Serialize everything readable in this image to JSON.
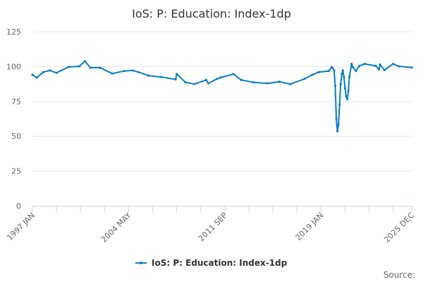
{
  "chart_data": {
    "type": "line",
    "title": "IoS: P: Education: Index-1dp",
    "xlabel": "",
    "ylabel": "",
    "x_range": [
      "1997-01",
      "2025-12"
    ],
    "x_tick_labels": [
      "1997 JAN",
      "2004 MAY",
      "2011 SEP",
      "2019 JAN",
      "2025 DEC"
    ],
    "ylim": [
      0,
      125
    ],
    "y_ticks": [
      0,
      25,
      50,
      75,
      100,
      125
    ],
    "grid": "horizontal",
    "legend_position": "bottom",
    "markers": true,
    "color": "#0a7dc2",
    "series": [
      {
        "name": "IoS: P: Education: Index-1dp",
        "points": [
          [
            "1997-01",
            94.1
          ],
          [
            "1997-05",
            92.1
          ],
          [
            "1997-11",
            96.0
          ],
          [
            "1998-05",
            97.2
          ],
          [
            "1998-11",
            95.5
          ],
          [
            "1999-10",
            99.7
          ],
          [
            "2000-08",
            100.2
          ],
          [
            "2001-01",
            103.9
          ],
          [
            "2001-06",
            99.2
          ],
          [
            "2002-03",
            99.2
          ],
          [
            "2003-02",
            95.0
          ],
          [
            "2004-01",
            96.8
          ],
          [
            "2004-09",
            97.2
          ],
          [
            "2005-02",
            96.0
          ],
          [
            "2005-11",
            93.5
          ],
          [
            "2006-11",
            92.5
          ],
          [
            "2007-12",
            90.8
          ],
          [
            "2008-01",
            94.6
          ],
          [
            "2008-09",
            88.7
          ],
          [
            "2009-05",
            87.4
          ],
          [
            "2010-04",
            90.4
          ],
          [
            "2010-06",
            87.9
          ],
          [
            "2011-02",
            91.2
          ],
          [
            "2011-05",
            92.1
          ],
          [
            "2012-05",
            94.6
          ],
          [
            "2012-12",
            90.4
          ],
          [
            "2013-11",
            88.7
          ],
          [
            "2014-12",
            87.9
          ],
          [
            "2015-11",
            89.1
          ],
          [
            "2016-09",
            87.4
          ],
          [
            "2017-10",
            91.2
          ],
          [
            "2018-05",
            94.1
          ],
          [
            "2018-11",
            96.0
          ],
          [
            "2019-08",
            96.8
          ],
          [
            "2019-11",
            99.7
          ],
          [
            "2020-01",
            97.2
          ],
          [
            "2020-02",
            86.2
          ],
          [
            "2020-03",
            62.6
          ],
          [
            "2020-04",
            53.6
          ],
          [
            "2020-05",
            58.4
          ],
          [
            "2020-06",
            72.7
          ],
          [
            "2020-07",
            87.4
          ],
          [
            "2020-08",
            94.6
          ],
          [
            "2020-09",
            97.2
          ],
          [
            "2020-10",
            92.5
          ],
          [
            "2020-11",
            84.5
          ],
          [
            "2020-12",
            78.6
          ],
          [
            "2021-01",
            76.6
          ],
          [
            "2021-02",
            82.3
          ],
          [
            "2021-03",
            92.5
          ],
          [
            "2021-05",
            101.9
          ],
          [
            "2021-06",
            99.7
          ],
          [
            "2021-09",
            96.8
          ],
          [
            "2021-12",
            100.5
          ],
          [
            "2022-05",
            101.9
          ],
          [
            "2023-03",
            100.5
          ],
          [
            "2023-06",
            98.0
          ],
          [
            "2023-07",
            101.4
          ],
          [
            "2023-11",
            97.5
          ],
          [
            "2024-07",
            101.9
          ],
          [
            "2024-12",
            100.2
          ],
          [
            "2025-12",
            99.3
          ]
        ]
      }
    ]
  },
  "footer": {
    "source_label": "Source:"
  }
}
